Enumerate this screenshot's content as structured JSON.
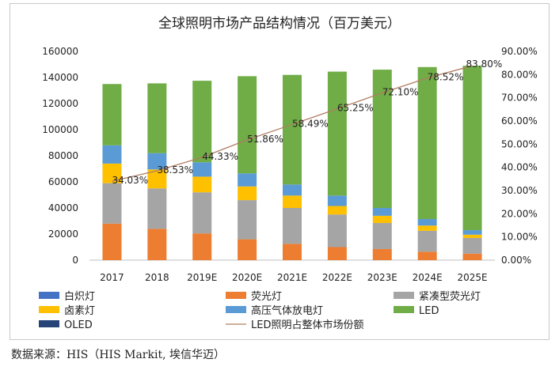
{
  "source_note": "数据来源：HIS（HIS Markit,  埃信华迈）",
  "chart_data": {
    "type": "bar",
    "stacked": true,
    "title": "全球照明市场产品结构情况（百万美元）",
    "categories": [
      "2017",
      "2018",
      "2019E",
      "2020E",
      "2021E",
      "2022E",
      "2023E",
      "2024E",
      "2025E"
    ],
    "ylim": [
      0,
      160000
    ],
    "yticks": [
      0,
      20000,
      40000,
      60000,
      80000,
      100000,
      120000,
      140000,
      160000
    ],
    "y2lim": [
      0,
      90
    ],
    "y2ticks": [
      "0.00%",
      "10.00%",
      "20.00%",
      "30.00%",
      "40.00%",
      "50.00%",
      "60.00%",
      "70.00%",
      "80.00%",
      "90.00%"
    ],
    "series": [
      {
        "name": "白炽灯",
        "color": "#4472c4",
        "values": [
          0,
          0,
          0,
          0,
          0,
          0,
          0,
          0,
          0
        ]
      },
      {
        "name": "荧光灯",
        "color": "#ed7d31",
        "values": [
          28000,
          24000,
          20500,
          16000,
          12500,
          10000,
          8500,
          6500,
          5000
        ]
      },
      {
        "name": "紧凑型荧光灯",
        "color": "#a5a5a5",
        "values": [
          31000,
          31000,
          31500,
          30000,
          27500,
          25000,
          20000,
          16000,
          12000
        ]
      },
      {
        "name": "卤素灯",
        "color": "#ffc000",
        "values": [
          15000,
          14500,
          12000,
          10500,
          9500,
          6500,
          5500,
          4000,
          2500
        ]
      },
      {
        "name": "高压气体放电灯",
        "color": "#5b9bd5",
        "values": [
          14000,
          12500,
          11000,
          10000,
          8500,
          8000,
          6000,
          5000,
          3500
        ]
      },
      {
        "name": "LED",
        "color": "#70ad47",
        "values": [
          47000,
          53500,
          62500,
          74500,
          84000,
          95000,
          106000,
          116500,
          126000
        ]
      },
      {
        "name": "OLED",
        "color": "#264478",
        "values": [
          0,
          0,
          0,
          0,
          0,
          0,
          0,
          0,
          0
        ]
      }
    ],
    "line": {
      "name": "LED照明占整体市场份额",
      "color": "#b07d62",
      "axis": "right",
      "values": [
        34.03,
        38.53,
        44.33,
        51.86,
        58.49,
        65.25,
        72.1,
        78.52,
        83.8
      ],
      "labels": [
        "34.03%",
        "38.53%",
        "44.33%",
        "51.86%",
        "58.49%",
        "65.25%",
        "72.10%",
        "78.52%",
        "83.80%"
      ]
    },
    "legend": {
      "position": "bottom",
      "items": [
        "白炽灯",
        "荧光灯",
        "紧凑型荧光灯",
        "卤素灯",
        "高压气体放电灯",
        "LED",
        "OLED",
        "LED照明占整体市场份额"
      ]
    },
    "grid": false
  }
}
